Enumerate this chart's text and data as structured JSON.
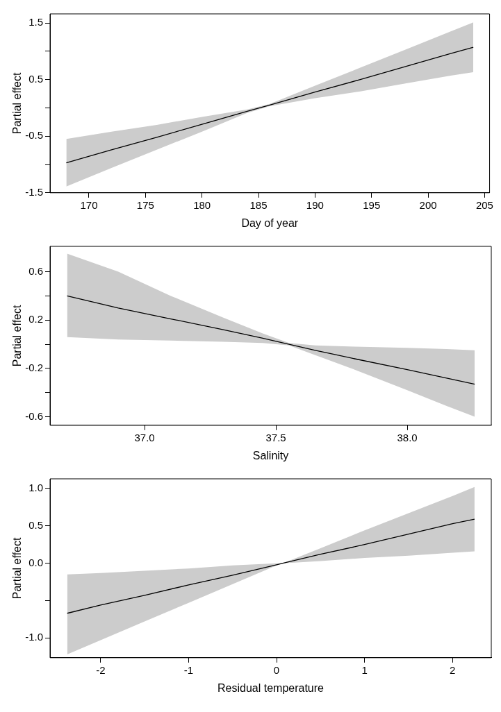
{
  "chart_data": [
    {
      "type": "line",
      "xlabel": "Day of year",
      "ylabel": "Partial effect",
      "x": [
        168,
        172,
        176,
        180,
        184,
        186,
        190,
        194,
        198,
        202,
        204
      ],
      "xlim": [
        166.56,
        205.44
      ],
      "xticks": [
        170,
        175,
        180,
        185,
        190,
        195,
        200,
        205
      ],
      "ylim": [
        -1.5,
        1.66
      ],
      "yticks": [
        -1.5,
        {
          "value": -1,
          "label": null
        },
        -0.5,
        {
          "value": 0,
          "label": null
        },
        0.5,
        {
          "value": 1,
          "label": null
        },
        1.5
      ],
      "grid": false,
      "legend": false,
      "series": [
        {
          "color": "#000000",
          "values": [
            -0.97,
            -0.74,
            -0.52,
            -0.29,
            -0.06,
            0.05,
            0.28,
            0.5,
            0.73,
            0.96,
            1.07
          ],
          "lower": [
            -1.39,
            -1.06,
            -0.74,
            -0.42,
            -0.09,
            0.03,
            0.17,
            0.29,
            0.43,
            0.57,
            0.63
          ],
          "upper": [
            -0.55,
            -0.42,
            -0.3,
            -0.16,
            -0.03,
            0.07,
            0.39,
            0.71,
            1.03,
            1.35,
            1.51
          ]
        }
      ]
    },
    {
      "type": "line",
      "xlabel": "Salinity",
      "ylabel": "Partial effect",
      "x": [
        36.705,
        36.9,
        37.1,
        37.3,
        37.45,
        37.55,
        37.65,
        37.8,
        38.0,
        38.15,
        38.257
      ],
      "xlim": [
        36.64,
        38.32
      ],
      "xticks": [
        {
          "value": 37,
          "label": "37.0"
        },
        37.5,
        {
          "value": 38,
          "label": "38.0"
        }
      ],
      "ylim": [
        -0.67,
        0.81
      ],
      "yticks": [
        -0.6,
        {
          "value": -0.4,
          "label": null
        },
        -0.2,
        {
          "value": 0,
          "label": null
        },
        0.2,
        {
          "value": 0.4,
          "label": null
        },
        0.6
      ],
      "grid": false,
      "legend": false,
      "series": [
        {
          "color": "#000000",
          "values": [
            0.4,
            0.3,
            0.21,
            0.12,
            0.05,
            0,
            -0.05,
            -0.12,
            -0.21,
            -0.28,
            -0.33
          ],
          "lower": [
            0.06,
            0.04,
            0.03,
            0.02,
            0.01,
            -0.01,
            -0.09,
            -0.21,
            -0.38,
            -0.51,
            -0.6
          ],
          "upper": [
            0.75,
            0.6,
            0.4,
            0.22,
            0.09,
            0.01,
            -0.01,
            -0.02,
            -0.03,
            -0.04,
            -0.05
          ]
        }
      ]
    },
    {
      "type": "line",
      "xlabel": "Residual temperature",
      "ylabel": "Partial effect",
      "x": [
        -2.38,
        -2,
        -1.5,
        -1,
        -0.5,
        0,
        0.07,
        0.5,
        1,
        1.5,
        2,
        2.25
      ],
      "xlim": [
        -2.575,
        2.44
      ],
      "xticks": [
        -2,
        -1,
        0,
        1,
        2
      ],
      "ylim": [
        -1.265,
        1.13
      ],
      "yticks": [
        {
          "value": -1,
          "label": "-1.0"
        },
        {
          "value": -0.5,
          "label": null
        },
        {
          "value": 0,
          "label": "0.0"
        },
        0.5,
        {
          "value": 1,
          "label": "1.0"
        }
      ],
      "grid": false,
      "legend": false,
      "series": [
        {
          "color": "#000000",
          "values": [
            -0.67,
            -0.56,
            -0.43,
            -0.29,
            -0.16,
            -0.02,
            0,
            0.12,
            0.25,
            0.39,
            0.53,
            0.59
          ],
          "lower": [
            -1.22,
            -1.03,
            -0.78,
            -0.53,
            -0.28,
            -0.03,
            0,
            0.03,
            0.07,
            0.1,
            0.14,
            0.16
          ],
          "upper": [
            -0.15,
            -0.13,
            -0.1,
            -0.07,
            -0.03,
            0,
            0,
            0.2,
            0.44,
            0.67,
            0.9,
            1.02
          ]
        }
      ]
    }
  ]
}
